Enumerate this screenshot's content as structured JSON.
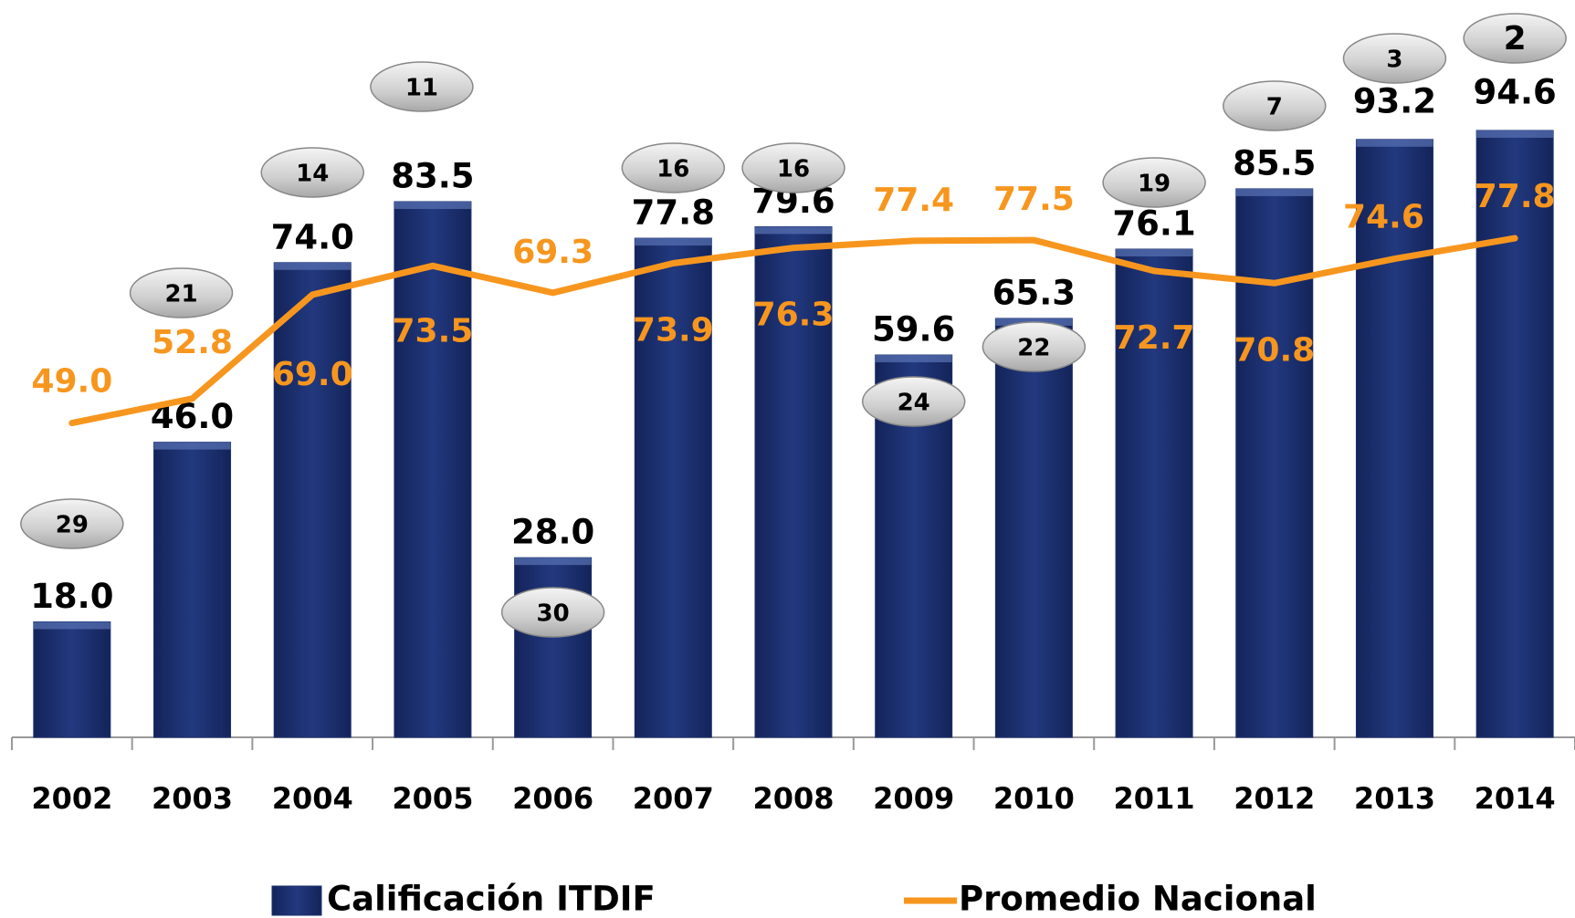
{
  "chart_data": {
    "type": "bar",
    "categories": [
      "2002",
      "2003",
      "2004",
      "2005",
      "2006",
      "2007",
      "2008",
      "2009",
      "2010",
      "2011",
      "2012",
      "2013",
      "2014"
    ],
    "series": [
      {
        "name": "Calificación ITDIF",
        "type": "bar",
        "color": "#1b2f6e",
        "values": [
          18.0,
          46.0,
          74.0,
          83.5,
          28.0,
          77.8,
          79.6,
          59.6,
          65.3,
          76.1,
          85.5,
          93.2,
          94.6
        ],
        "value_labels": [
          "18.0",
          "46.0",
          "74.0",
          "83.5",
          "28.0",
          "77.8",
          "79.6",
          "59.6",
          "65.3",
          "76.1",
          "85.5",
          "93.2",
          "94.6"
        ]
      },
      {
        "name": "Promedio Nacional",
        "type": "line",
        "color": "#f7961e",
        "values": [
          49.0,
          52.8,
          69.0,
          73.5,
          69.3,
          73.9,
          76.3,
          77.4,
          77.5,
          72.7,
          70.8,
          74.6,
          77.8
        ],
        "value_labels": [
          "49.0",
          "52.8",
          "69.0",
          "73.5",
          "69.3",
          "73.9",
          "76.3",
          "77.4",
          "77.5",
          "72.7",
          "70.8",
          "74.6",
          "77.8"
        ]
      }
    ],
    "ranks": [
      29,
      21,
      14,
      11,
      30,
      16,
      16,
      24,
      22,
      19,
      7,
      3,
      2
    ],
    "ylim": [
      0,
      100
    ],
    "grid": false,
    "legend": "bottom"
  }
}
